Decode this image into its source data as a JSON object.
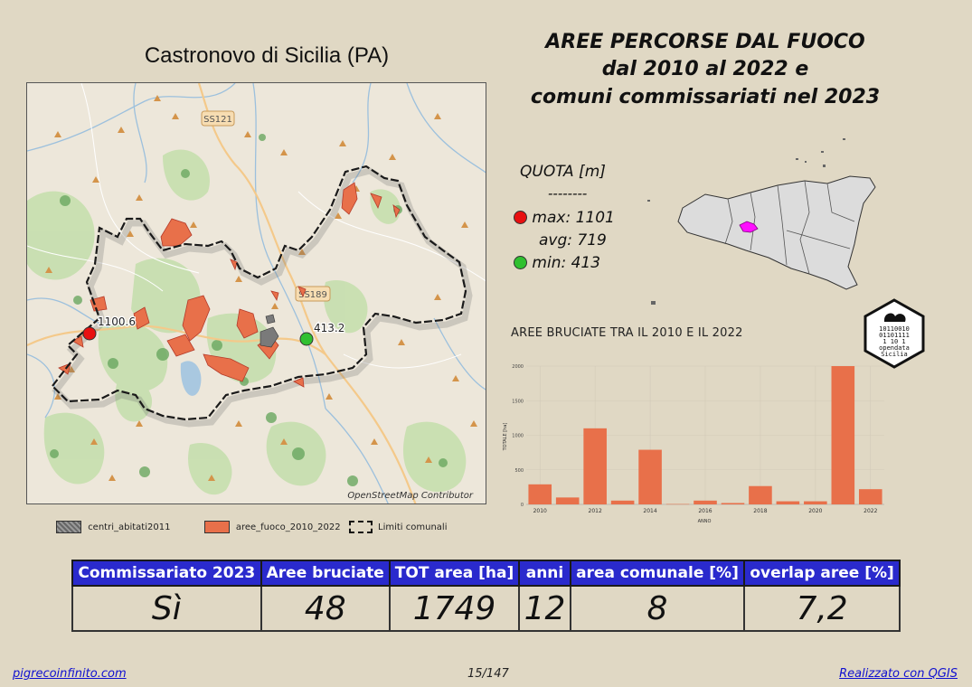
{
  "map": {
    "title": "Castronovo di Sicilia (PA)",
    "credit": "OpenStreetMap Contributor",
    "road_labels": [
      "SS121",
      "SS189"
    ],
    "max_label": "1100.6",
    "min_label": "413.2"
  },
  "header": {
    "line1": "AREE PERCORSE DAL FUOCO",
    "line2": "dal 2010 al 2022 e",
    "line3": "comuni commissariati nel 2023"
  },
  "quota": {
    "title": "QUOTA [m]",
    "dashes": "--------",
    "max": "max: 1101",
    "avg": "avg: 719",
    "min": "min: 413",
    "max_color": "#e81010",
    "min_color": "#30c030"
  },
  "logo": {
    "binary": [
      "10110010",
      "01101111",
      "1  10 1"
    ],
    "text1": "opendata",
    "text2": "Sicilia"
  },
  "legend": {
    "item1": "centri_abitati2011",
    "item2": "aree_fuoco_2010_2022",
    "item3": "Limiti comunali"
  },
  "chart_data": {
    "type": "bar",
    "title": "AREE BRUCIATE TRA IL 2010 E IL 2022",
    "xlabel": "ANNO",
    "ylabel": "TOTALE [ha]",
    "categories": [
      "2010",
      "2011",
      "2012",
      "2013",
      "2014",
      "2015",
      "2016",
      "2017",
      "2018",
      "2019",
      "2020",
      "2021",
      "2022"
    ],
    "values": [
      290,
      100,
      1100,
      55,
      790,
      5,
      55,
      20,
      265,
      45,
      45,
      2000,
      220
    ],
    "x_tick_labels": [
      "2010",
      "2012",
      "2014",
      "2016",
      "2018",
      "2020",
      "2022"
    ],
    "y_ticks": [
      0,
      500,
      1000,
      1500,
      2000
    ],
    "ylim": [
      0,
      2000
    ],
    "bar_color": "#e8704a"
  },
  "table": {
    "headers": [
      "Commissariato 2023",
      "Aree bruciate",
      "TOT area [ha]",
      "anni",
      "area comunale [%]",
      "overlap aree [%]"
    ],
    "values": [
      "Sì",
      "48",
      "1749",
      "12",
      "8",
      "7,2"
    ]
  },
  "footer": {
    "left": "pigrecoinfinito.com",
    "page": "15/147",
    "right": "Realizzato con QGIS"
  }
}
